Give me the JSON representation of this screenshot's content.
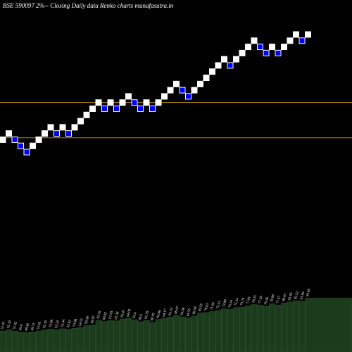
{
  "chart_data": {
    "type": "renko",
    "title": "BSE 590097 2%-- Closing Daily data  Renko  charts munafasutra.in",
    "values": [
      2,
      3,
      2,
      1,
      0,
      1,
      2,
      3,
      4,
      3,
      4,
      3,
      4,
      5,
      6,
      7,
      8,
      7,
      8,
      7,
      8,
      9,
      8,
      7,
      8,
      7,
      8,
      9,
      10,
      11,
      10,
      9,
      10,
      11,
      12,
      13,
      14,
      15,
      14,
      15,
      16,
      17,
      18,
      17,
      16,
      17,
      16,
      17,
      18,
      19,
      18,
      19
    ],
    "up_color": "#ffffff",
    "down_color": "#0000ff",
    "ylim": [
      0,
      19
    ],
    "lines": [
      8,
      2.3
    ],
    "line_color": "#b8860b",
    "lower": {
      "values": [
        51.07,
        52.19,
        51.02,
        49.8,
        49.36,
        49.72,
        51.05,
        52.19,
        53.08,
        52.24,
        53.34,
        52.82,
        53.88,
        54.51,
        56.59,
        56.97,
        62.16,
        60.85,
        61.93,
        61.36,
        63.41,
        64.05,
        62.6,
        60.6,
        61.79,
        60.05,
        62.88,
        64.17,
        65.19,
        66.97,
        65.58,
        64.55,
        66.58,
        69.55,
        70.02,
        71.04,
        72.43,
        73.88,
        73.24,
        75.24,
        75.76,
        77.01,
        78.25,
        77.58,
        76.36,
        78.98,
        77.67,
        80.03,
        81.06,
        82.22,
        81.84,
        84.89
      ],
      "color": "#1c3a1c",
      "ylim": [
        33,
        120
      ]
    }
  }
}
